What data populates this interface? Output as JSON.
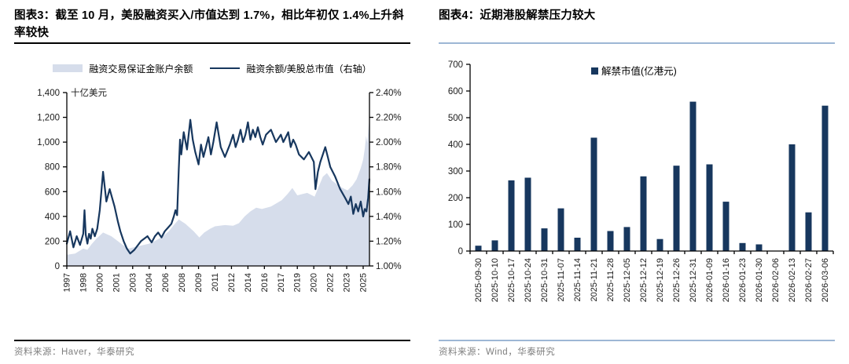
{
  "colors": {
    "navy": "#17375E",
    "area_fill": "#D6DDEB",
    "axis": "#000000",
    "tick_label": "#1a1a1a",
    "rule_black": "#000000",
    "rule_blue": "#9DB7D5",
    "source_text": "#7F7F7F"
  },
  "chart3": {
    "title": "图表3：截至 10 月，美股融资买入/市值达到 1.7%，相比年初仅 1.4%上升斜率较快",
    "legend": [
      {
        "label": "融资交易保证金账户余额",
        "type": "area"
      },
      {
        "label": "融资余额/美股总市值（右轴）",
        "type": "line"
      }
    ],
    "source": "资料来源：Haver，华泰研究"
  },
  "chart4": {
    "title": "图表4：近期港股解禁压力较大",
    "legend_label": "解禁市值(亿港元)",
    "source": "资料来源：Wind，华泰研究"
  },
  "chart_data": [
    {
      "type": "line",
      "title": "图表3：截至 10 月，美股融资买入/市值达到 1.7%，相比年初仅 1.4%上升斜率较快",
      "left_axis": {
        "label": "十亿美元",
        "min": 0,
        "max": 1400,
        "ticks": [
          "0",
          "200",
          "400",
          "600",
          "800",
          "1,000",
          "1,200",
          "1,400"
        ],
        "tick_values": [
          0,
          200,
          400,
          600,
          800,
          1000,
          1200,
          1400
        ]
      },
      "right_axis": {
        "min": 1.0,
        "max": 2.4,
        "ticks": [
          "1.00%",
          "1.20%",
          "1.40%",
          "1.60%",
          "1.80%",
          "2.00%",
          "2.20%",
          "2.40%"
        ],
        "tick_values": [
          1.0,
          1.2,
          1.4,
          1.6,
          1.8,
          2.0,
          2.2,
          2.4
        ]
      },
      "x_tick_years": [
        1997,
        1998,
        2000,
        2001,
        2003,
        2004,
        2006,
        2008,
        2009,
        2011,
        2012,
        2014,
        2016,
        2017,
        2019,
        2020,
        2022,
        2023,
        2025
      ],
      "x_tick_labels": [
        "1997",
        "1998",
        "2000",
        "2001",
        "2003",
        "2004",
        "2006",
        "2008",
        "2009",
        "2011",
        "2012",
        "2014",
        "2016",
        "2017",
        "2019",
        "2020",
        "2022",
        "2023",
        "2025"
      ],
      "grid": false,
      "legend_position": "top-center",
      "series": [
        {
          "name": "融资交易保证金账户余额",
          "render": "area",
          "axis": "left",
          "points": [
            [
              1997.0,
              90
            ],
            [
              1997.5,
              100
            ],
            [
              1998.0,
              140
            ],
            [
              1998.5,
              130
            ],
            [
              1999.0,
              175
            ],
            [
              1999.6,
              220
            ],
            [
              2000.2,
              270
            ],
            [
              2000.7,
              240
            ],
            [
              2001.2,
              200
            ],
            [
              2001.8,
              170
            ],
            [
              2002.5,
              140
            ],
            [
              2003.2,
              155
            ],
            [
              2004.0,
              180
            ],
            [
              2004.8,
              205
            ],
            [
              2005.6,
              235
            ],
            [
              2006.4,
              280
            ],
            [
              2007.0,
              330
            ],
            [
              2007.6,
              375
            ],
            [
              2008.2,
              340
            ],
            [
              2008.7,
              280
            ],
            [
              2009.1,
              230
            ],
            [
              2009.7,
              270
            ],
            [
              2010.4,
              300
            ],
            [
              2011.0,
              320
            ],
            [
              2011.6,
              330
            ],
            [
              2012.2,
              325
            ],
            [
              2012.9,
              345
            ],
            [
              2013.6,
              400
            ],
            [
              2014.3,
              440
            ],
            [
              2015.0,
              470
            ],
            [
              2015.7,
              460
            ],
            [
              2016.4,
              480
            ],
            [
              2017.1,
              530
            ],
            [
              2017.8,
              580
            ],
            [
              2018.4,
              630
            ],
            [
              2019.0,
              570
            ],
            [
              2019.6,
              590
            ],
            [
              2020.1,
              560
            ],
            [
              2020.6,
              640
            ],
            [
              2021.1,
              720
            ],
            [
              2021.6,
              750
            ],
            [
              2022.1,
              690
            ],
            [
              2022.6,
              640
            ],
            [
              2023.1,
              610
            ],
            [
              2023.7,
              650
            ],
            [
              2024.2,
              700
            ],
            [
              2024.7,
              790
            ],
            [
              2025.0,
              860
            ],
            [
              2025.2,
              950
            ],
            [
              2025.35,
              1050
            ],
            [
              2025.5,
              990
            ],
            [
              2025.65,
              1120
            ],
            [
              2025.75,
              1180
            ]
          ]
        },
        {
          "name": "融资余额/美股总市值（右轴）",
          "render": "line",
          "axis": "right",
          "points": [
            [
              1997.0,
              1.18
            ],
            [
              1997.2,
              1.28
            ],
            [
              1997.4,
              1.15
            ],
            [
              1997.6,
              1.24
            ],
            [
              1997.8,
              1.17
            ],
            [
              1998.0,
              1.26
            ],
            [
              1998.15,
              1.45
            ],
            [
              1998.3,
              1.25
            ],
            [
              1998.5,
              1.18
            ],
            [
              1998.7,
              1.26
            ],
            [
              1998.9,
              1.22
            ],
            [
              1999.1,
              1.3
            ],
            [
              1999.4,
              1.24
            ],
            [
              1999.7,
              1.3
            ],
            [
              2000.0,
              1.45
            ],
            [
              2000.2,
              1.76
            ],
            [
              2000.4,
              1.52
            ],
            [
              2000.6,
              1.62
            ],
            [
              2000.9,
              1.48
            ],
            [
              2001.2,
              1.36
            ],
            [
              2001.5,
              1.28
            ],
            [
              2001.9,
              1.2
            ],
            [
              2002.3,
              1.14
            ],
            [
              2002.7,
              1.1
            ],
            [
              2003.1,
              1.13
            ],
            [
              2003.5,
              1.2
            ],
            [
              2003.9,
              1.24
            ],
            [
              2004.3,
              1.19
            ],
            [
              2004.7,
              1.24
            ],
            [
              2005.1,
              1.27
            ],
            [
              2005.5,
              1.23
            ],
            [
              2005.9,
              1.28
            ],
            [
              2006.3,
              1.31
            ],
            [
              2006.7,
              1.34
            ],
            [
              2007.0,
              1.4
            ],
            [
              2007.2,
              1.45
            ],
            [
              2007.4,
              1.41
            ],
            [
              2007.6,
              1.78
            ],
            [
              2007.75,
              2.02
            ],
            [
              2007.9,
              1.9
            ],
            [
              2008.1,
              2.08
            ],
            [
              2008.3,
              1.94
            ],
            [
              2008.5,
              2.18
            ],
            [
              2008.65,
              2.02
            ],
            [
              2008.8,
              1.92
            ],
            [
              2009.0,
              1.82
            ],
            [
              2009.3,
              1.98
            ],
            [
              2009.6,
              1.88
            ],
            [
              2009.9,
              1.96
            ],
            [
              2010.2,
              2.04
            ],
            [
              2010.5,
              1.9
            ],
            [
              2010.8,
              2.0
            ],
            [
              2011.1,
              2.16
            ],
            [
              2011.35,
              1.96
            ],
            [
              2011.6,
              1.88
            ],
            [
              2011.9,
              1.98
            ],
            [
              2012.2,
              2.06
            ],
            [
              2012.5,
              1.96
            ],
            [
              2012.8,
              2.02
            ],
            [
              2013.1,
              2.1
            ],
            [
              2013.4,
              2.0
            ],
            [
              2013.7,
              2.06
            ],
            [
              2014.0,
              2.16
            ],
            [
              2014.3,
              2.02
            ],
            [
              2014.6,
              2.1
            ],
            [
              2014.9,
              2.04
            ],
            [
              2015.2,
              2.12
            ],
            [
              2015.5,
              2.04
            ],
            [
              2015.8,
              1.98
            ],
            [
              2016.1,
              2.06
            ],
            [
              2016.4,
              2.1
            ],
            [
              2016.7,
              2.0
            ],
            [
              2017.0,
              2.06
            ],
            [
              2017.3,
              2.0
            ],
            [
              2017.6,
              2.04
            ],
            [
              2017.9,
              2.08
            ],
            [
              2018.2,
              1.96
            ],
            [
              2018.5,
              2.02
            ],
            [
              2018.8,
              1.98
            ],
            [
              2019.1,
              1.9
            ],
            [
              2019.4,
              1.86
            ],
            [
              2019.7,
              1.92
            ],
            [
              2020.0,
              1.84
            ],
            [
              2020.2,
              1.62
            ],
            [
              2020.5,
              1.76
            ],
            [
              2020.8,
              1.84
            ],
            [
              2021.1,
              1.9
            ],
            [
              2021.4,
              1.96
            ],
            [
              2021.7,
              1.88
            ],
            [
              2022.0,
              1.8
            ],
            [
              2022.3,
              1.72
            ],
            [
              2022.6,
              1.62
            ],
            [
              2022.9,
              1.55
            ],
            [
              2023.2,
              1.5
            ],
            [
              2023.5,
              1.56
            ],
            [
              2023.8,
              1.42
            ],
            [
              2024.1,
              1.5
            ],
            [
              2024.4,
              1.44
            ],
            [
              2024.7,
              1.52
            ],
            [
              2025.0,
              1.4
            ],
            [
              2025.2,
              1.46
            ],
            [
              2025.4,
              1.44
            ],
            [
              2025.6,
              1.55
            ],
            [
              2025.75,
              1.7
            ]
          ]
        }
      ]
    },
    {
      "type": "bar",
      "title": "图表4：近期港股解禁压力较大",
      "legend": "解禁市值(亿港元)",
      "xlabel": "",
      "ylabel": "",
      "ylim": [
        0,
        700
      ],
      "y_ticks": [
        "0",
        "100",
        "200",
        "300",
        "400",
        "500",
        "600",
        "700"
      ],
      "y_tick_values": [
        0,
        100,
        200,
        300,
        400,
        500,
        600,
        700
      ],
      "grid": false,
      "categories": [
        "2025-09-30",
        "2025-10-10",
        "2025-10-17",
        "2025-10-24",
        "2025-10-31",
        "2025-11-07",
        "2025-11-14",
        "2025-11-21",
        "2025-11-28",
        "2025-12-05",
        "2025-12-12",
        "2025-12-19",
        "2025-12-26",
        "2025-12-31",
        "2026-01-09",
        "2026-01-16",
        "2026-01-23",
        "2026-01-30",
        "2026-02-06",
        "2026-02-13",
        "2026-02-27",
        "2026-03-06"
      ],
      "values": [
        20,
        40,
        265,
        275,
        85,
        160,
        50,
        425,
        75,
        90,
        280,
        45,
        320,
        560,
        325,
        185,
        30,
        25,
        0,
        400,
        145,
        545
      ]
    }
  ]
}
